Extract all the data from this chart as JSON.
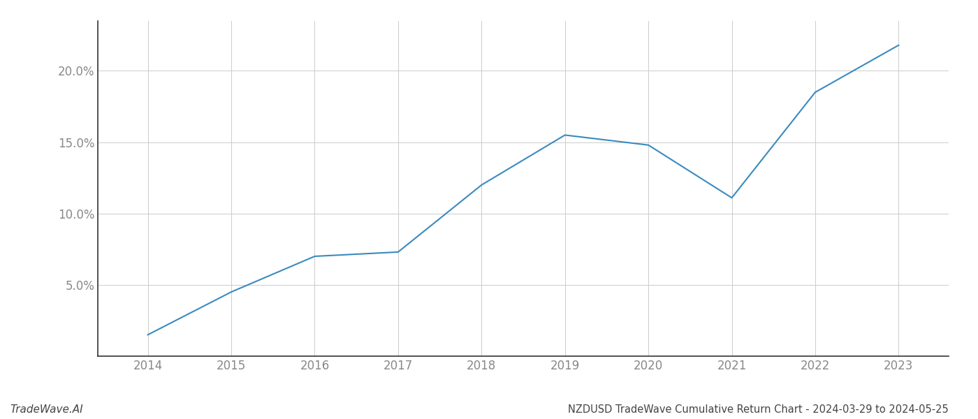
{
  "x_years": [
    2014,
    2015,
    2016,
    2017,
    2018,
    2019,
    2020,
    2021,
    2022,
    2023
  ],
  "y_values": [
    1.5,
    4.5,
    7.0,
    7.3,
    12.0,
    15.5,
    14.8,
    11.1,
    18.5,
    21.8
  ],
  "line_color": "#3a8abf",
  "line_width": 1.5,
  "background_color": "#ffffff",
  "grid_color": "#cccccc",
  "title": "NZDUSD TradeWave Cumulative Return Chart - 2024-03-29 to 2024-05-25",
  "watermark": "TradeWave.AI",
  "ylabel_ticks": [
    5.0,
    10.0,
    15.0,
    20.0
  ],
  "xlim": [
    2013.4,
    2023.6
  ],
  "ylim": [
    0.0,
    23.5
  ],
  "tick_label_color": "#888888",
  "title_color": "#444444",
  "spine_color": "#333333",
  "title_fontsize": 10.5,
  "watermark_fontsize": 11,
  "tick_fontsize": 12
}
